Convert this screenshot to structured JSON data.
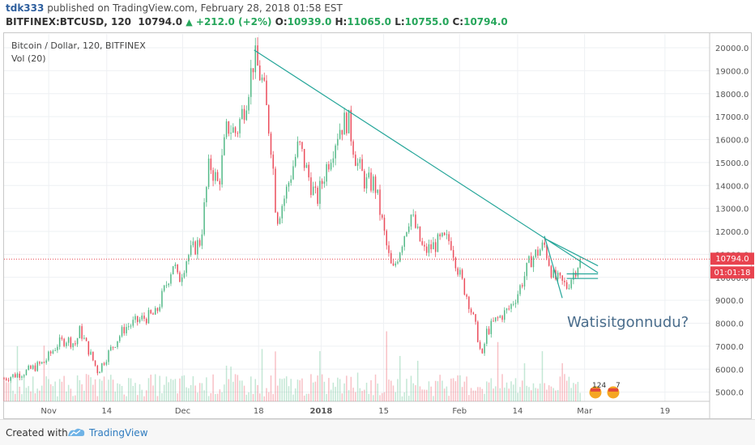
{
  "header": {
    "author": "tdk333",
    "published": "published on TradingView.com, February 28, 2018 01:58 EST",
    "symbol": "BITFINEX:BTCUSD, 120",
    "last": "10794.0",
    "change": "+212.0 (+2%)",
    "o_label": "O:",
    "o_value": "10939.0",
    "h_label": "H:",
    "h_value": "11065.0",
    "l_label": "L:",
    "l_value": "10755.0",
    "c_label": "C:",
    "c_value": "10794.0"
  },
  "legend": {
    "series": "Bitcoin / Dollar, 120, BITFINEX",
    "volume": "Vol (20)"
  },
  "footer": {
    "created_with": "Created with",
    "brand": "TradingView"
  },
  "colors": {
    "up": "#53b987",
    "down": "#eb4d5c",
    "trendline": "#26a69a",
    "price_line": "#e8434f",
    "axis_text": "#555555",
    "grid": "#eef0f3"
  },
  "chart_data": {
    "type": "candlestick",
    "title": "Bitcoin / Dollar, 120, BITFINEX",
    "ylim": [
      4600,
      20600
    ],
    "y_ticks": [
      5000,
      6000,
      7000,
      8000,
      9000,
      10000,
      11000,
      12000,
      13000,
      14000,
      15000,
      16000,
      17000,
      18000,
      19000,
      20000
    ],
    "x_ticks": [
      "Nov",
      "14",
      "Dec",
      "18",
      "2018",
      "15",
      "Feb",
      "14",
      "Mar",
      "19"
    ],
    "x_tick_dates": [
      "2017-11-01",
      "2017-11-14",
      "2017-12-01",
      "2017-12-18",
      "2018-01-01",
      "2018-01-15",
      "2018-02-01",
      "2018-02-14",
      "2018-03-01",
      "2018-03-19"
    ],
    "x_range": [
      "2017-10-22",
      "2018-03-29"
    ],
    "price_path": [
      [
        "2017-10-22",
        5600
      ],
      [
        "2017-10-27",
        5900
      ],
      [
        "2017-10-31",
        6300
      ],
      [
        "2017-11-03",
        7100
      ],
      [
        "2017-11-05",
        7300
      ],
      [
        "2017-11-07",
        7100
      ],
      [
        "2017-11-08",
        7700
      ],
      [
        "2017-11-10",
        6800
      ],
      [
        "2017-11-12",
        5900
      ],
      [
        "2017-11-15",
        6900
      ],
      [
        "2017-11-18",
        7800
      ],
      [
        "2017-11-22",
        8200
      ],
      [
        "2017-11-25",
        8400
      ],
      [
        "2017-11-27",
        9500
      ],
      [
        "2017-11-29",
        10700
      ],
      [
        "2017-11-30",
        9800
      ],
      [
        "2017-12-02",
        10900
      ],
      [
        "2017-12-05",
        11600
      ],
      [
        "2017-12-07",
        15000
      ],
      [
        "2017-12-09",
        14000
      ],
      [
        "2017-12-11",
        16600
      ],
      [
        "2017-12-13",
        16300
      ],
      [
        "2017-12-15",
        17600
      ],
      [
        "2017-12-17",
        19600
      ],
      [
        "2017-12-19",
        18400
      ],
      [
        "2017-12-21",
        15500
      ],
      [
        "2017-12-22",
        12500
      ],
      [
        "2017-12-24",
        13600
      ],
      [
        "2017-12-27",
        15800
      ],
      [
        "2017-12-29",
        14500
      ],
      [
        "2017-12-31",
        13300
      ],
      [
        "2018-01-02",
        14700
      ],
      [
        "2018-01-05",
        16500
      ],
      [
        "2018-01-07",
        16900
      ],
      [
        "2018-01-09",
        15000
      ],
      [
        "2018-01-11",
        14100
      ],
      [
        "2018-01-13",
        14100
      ],
      [
        "2018-01-16",
        11000
      ],
      [
        "2018-01-17",
        10200
      ],
      [
        "2018-01-19",
        11500
      ],
      [
        "2018-01-21",
        12800
      ],
      [
        "2018-01-24",
        11100
      ],
      [
        "2018-01-28",
        11600
      ],
      [
        "2018-01-30",
        11600
      ],
      [
        "2018-02-01",
        10100
      ],
      [
        "2018-02-03",
        9000
      ],
      [
        "2018-02-05",
        7500
      ],
      [
        "2018-02-06",
        6400
      ],
      [
        "2018-02-07",
        7600
      ],
      [
        "2018-02-09",
        8100
      ],
      [
        "2018-02-12",
        8600
      ],
      [
        "2018-02-14",
        9300
      ],
      [
        "2018-02-17",
        10800
      ],
      [
        "2018-02-20",
        11400
      ],
      [
        "2018-02-22",
        10000
      ],
      [
        "2018-02-25",
        9600
      ],
      [
        "2018-02-28",
        10794
      ]
    ],
    "last_price": 10794.0,
    "price_label": "10794.0",
    "countdown_label": "01:01:18",
    "trendlines": [
      {
        "from": [
          "2017-12-17",
          19900
        ],
        "to": [
          "2018-03-04",
          10200
        ]
      },
      {
        "from": [
          "2018-02-20",
          11800
        ],
        "to": [
          "2018-02-24",
          9100
        ]
      },
      {
        "from": [
          "2018-02-20",
          11700
        ],
        "to": [
          "2018-03-04",
          10500
        ]
      },
      {
        "from": [
          "2018-02-25",
          10150
        ],
        "to": [
          "2018-03-04",
          10150
        ]
      },
      {
        "from": [
          "2018-02-25",
          9950
        ],
        "to": [
          "2018-03-04",
          9950
        ]
      }
    ],
    "annotation": "Watisitgonnudu?",
    "event_badges": [
      "124",
      "7"
    ]
  }
}
